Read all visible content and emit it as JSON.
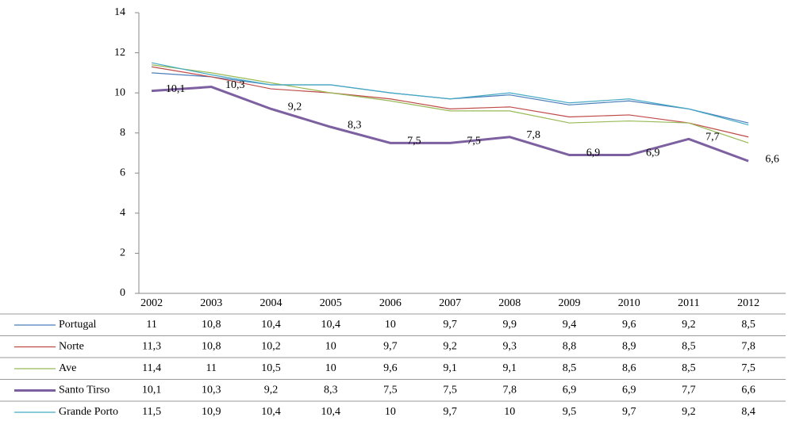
{
  "chart_data": {
    "type": "line",
    "categories": [
      "2002",
      "2003",
      "2004",
      "2005",
      "2006",
      "2007",
      "2008",
      "2009",
      "2010",
      "2011",
      "2012"
    ],
    "ylim": [
      0,
      14
    ],
    "yticks": [
      0,
      2,
      4,
      6,
      8,
      10,
      12,
      14
    ],
    "series": [
      {
        "name": "Portugal",
        "color": "#4a7ebb",
        "values": [
          11,
          10.8,
          10.4,
          10.4,
          10,
          9.7,
          9.9,
          9.4,
          9.6,
          9.2,
          8.5
        ],
        "value_labels": [
          "11",
          "10,8",
          "10,4",
          "10,4",
          "10",
          "9,7",
          "9,9",
          "9,4",
          "9,6",
          "9,2",
          "8,5"
        ]
      },
      {
        "name": "Norte",
        "color": "#be4b48",
        "values": [
          11.3,
          10.8,
          10.2,
          10,
          9.7,
          9.2,
          9.3,
          8.8,
          8.9,
          8.5,
          7.8
        ],
        "value_labels": [
          "11,3",
          "10,8",
          "10,2",
          "10",
          "9,7",
          "9,2",
          "9,3",
          "8,8",
          "8,9",
          "8,5",
          "7,8"
        ]
      },
      {
        "name": "Ave",
        "color": "#98b954",
        "values": [
          11.4,
          11,
          10.5,
          10,
          9.6,
          9.1,
          9.1,
          8.5,
          8.6,
          8.5,
          7.5
        ],
        "value_labels": [
          "11,4",
          "11",
          "10,5",
          "10",
          "9,6",
          "9,1",
          "9,1",
          "8,5",
          "8,6",
          "8,5",
          "7,5"
        ]
      },
      {
        "name": "Santo Tirso",
        "color": "#7d60a0",
        "values": [
          10.1,
          10.3,
          9.2,
          8.3,
          7.5,
          7.5,
          7.8,
          6.9,
          6.9,
          7.7,
          6.6
        ],
        "value_labels": [
          "10,1",
          "10,3",
          "9,2",
          "8,3",
          "7,5",
          "7,5",
          "7,8",
          "6,9",
          "6,9",
          "7,7",
          "6,6"
        ]
      },
      {
        "name": "Grande Porto",
        "color": "#46aac5",
        "values": [
          11.5,
          10.9,
          10.4,
          10.4,
          10,
          9.7,
          10,
          9.5,
          9.7,
          9.2,
          8.4
        ],
        "value_labels": [
          "11,5",
          "10,9",
          "10,4",
          "10,4",
          "10",
          "9,7",
          "10",
          "9,5",
          "9,7",
          "9,2",
          "8,4"
        ]
      }
    ]
  }
}
